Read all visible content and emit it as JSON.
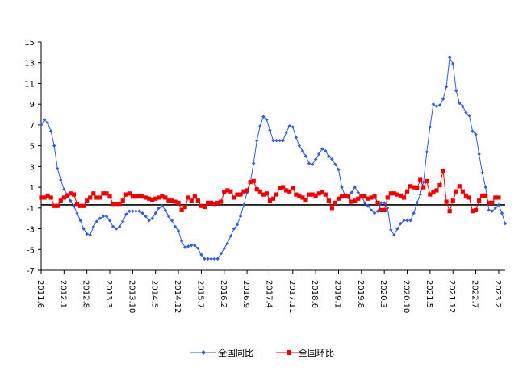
{
  "chart_data": {
    "type": "line",
    "title": "",
    "xlabel": "",
    "ylabel": "",
    "ylim": [
      -7,
      15
    ],
    "yticks": [
      15,
      13,
      11,
      9,
      7,
      5,
      3,
      1,
      -1,
      -3,
      -5,
      -7
    ],
    "x_tick_labels": [
      "2011.6",
      "2012.1",
      "2012.8",
      "2013.3",
      "2013.10",
      "2014.5",
      "2014.12",
      "2015.7",
      "2016.2",
      "2016.9",
      "2017.4",
      "2017.11",
      "2018.6",
      "2019.1",
      "2019.8",
      "2020.3",
      "2020.10",
      "2021.5",
      "2021.12",
      "2022.7",
      "2023.2"
    ],
    "x_tick_index": [
      0,
      7,
      14,
      21,
      28,
      35,
      42,
      49,
      56,
      63,
      70,
      77,
      84,
      91,
      98,
      105,
      112,
      119,
      126,
      133,
      140
    ],
    "series": [
      {
        "name": "全国同比",
        "color": "#2e5ce6",
        "marker": "diamond",
        "values": [
          7.0,
          7.5,
          7.2,
          6.4,
          5.0,
          2.8,
          1.7,
          0.8,
          0.3,
          -0.3,
          -0.8,
          -1.5,
          -2.2,
          -3.0,
          -3.5,
          -3.6,
          -2.8,
          -2.3,
          -2.0,
          -1.8,
          -1.8,
          -2.2,
          -2.8,
          -3.0,
          -2.8,
          -2.3,
          -1.6,
          -1.3,
          -1.3,
          -1.3,
          -1.3,
          -1.5,
          -1.8,
          -2.2,
          -2.0,
          -1.5,
          -1.0,
          -0.8,
          -1.2,
          -1.8,
          -2.2,
          -2.8,
          -3.2,
          -4.2,
          -4.8,
          -4.7,
          -4.6,
          -4.6,
          -4.9,
          -5.5,
          -5.9,
          -5.9,
          -5.9,
          -5.9,
          -5.9,
          -5.4,
          -4.9,
          -4.4,
          -3.7,
          -3.0,
          -2.6,
          -1.8,
          -0.7,
          0.5,
          1.5,
          3.3,
          5.5,
          6.9,
          7.8,
          7.5,
          6.5,
          5.5,
          5.5,
          5.5,
          5.5,
          6.3,
          6.9,
          6.8,
          5.8,
          5.0,
          4.5,
          4.0,
          3.3,
          3.2,
          3.7,
          4.2,
          4.7,
          4.5,
          4.0,
          3.7,
          3.2,
          2.7,
          1.0,
          0.2,
          0.0,
          0.5,
          1.0,
          0.5,
          0.2,
          -0.5,
          -0.8,
          -1.2,
          -1.5,
          -1.3,
          -0.5,
          -0.5,
          -1.0,
          -3.1,
          -3.6,
          -3.0,
          -2.5,
          -2.2,
          -2.2,
          -2.2,
          -1.5,
          -0.5,
          0.3,
          1.5,
          4.4,
          6.8,
          9.0,
          8.8,
          8.9,
          9.5,
          10.7,
          13.5,
          12.9,
          10.3,
          9.1,
          8.8,
          8.2,
          7.9,
          6.4,
          6.1,
          4.2,
          2.4,
          1.0,
          -1.2,
          -1.3,
          -1.0,
          -0.7,
          -1.5,
          -2.5
        ]
      },
      {
        "name": "全国环比",
        "color": "#ee0000",
        "marker": "square",
        "values": [
          0.0,
          0.0,
          0.2,
          0.0,
          -0.8,
          -0.8,
          -0.3,
          0.0,
          0.2,
          0.4,
          0.3,
          -0.6,
          -0.8,
          -0.8,
          -0.3,
          0.0,
          0.4,
          0.0,
          0.0,
          0.4,
          0.4,
          0.1,
          -0.6,
          -0.6,
          -0.6,
          -0.3,
          0.3,
          0.4,
          0.1,
          0.1,
          0.1,
          0.1,
          0.0,
          -0.1,
          -0.2,
          -0.1,
          0.0,
          0.1,
          0.0,
          -0.3,
          -0.3,
          -0.4,
          -0.5,
          -1.2,
          -0.9,
          0.0,
          -0.3,
          0.1,
          -0.3,
          -0.8,
          -0.9,
          -0.5,
          -0.5,
          -0.6,
          -0.5,
          -0.4,
          0.5,
          0.7,
          0.6,
          0.0,
          0.3,
          0.3,
          0.6,
          0.7,
          1.5,
          1.6,
          0.8,
          0.6,
          0.3,
          0.4,
          -0.3,
          -0.1,
          0.3,
          0.9,
          1.0,
          0.7,
          0.6,
          0.9,
          0.3,
          0.2,
          0.0,
          -0.2,
          0.3,
          0.3,
          0.2,
          0.4,
          0.5,
          0.3,
          -0.3,
          -1.0,
          -0.5,
          -0.1,
          0.1,
          0.2,
          0.1,
          -0.4,
          -0.3,
          -0.1,
          0.1,
          0.1,
          -0.1,
          0.0,
          0.1,
          -0.5,
          -1.2,
          -1.2,
          0.0,
          0.4,
          0.4,
          0.3,
          0.2,
          0.0,
          0.6,
          1.1,
          1.0,
          0.9,
          1.7,
          1.0,
          1.6,
          0.3,
          0.5,
          0.7,
          1.2,
          2.6,
          -0.4,
          -1.3,
          -0.3,
          0.6,
          1.1,
          0.6,
          0.2,
          0.0,
          -1.3,
          -1.2,
          -0.3,
          0.2,
          0.2,
          -0.5,
          -0.5,
          0.0,
          0.0
        ]
      }
    ],
    "legend": {
      "position": "bottom",
      "entries": [
        "全国同比",
        "全国环比"
      ]
    },
    "grid": false,
    "reference_line_y": -0.7
  }
}
